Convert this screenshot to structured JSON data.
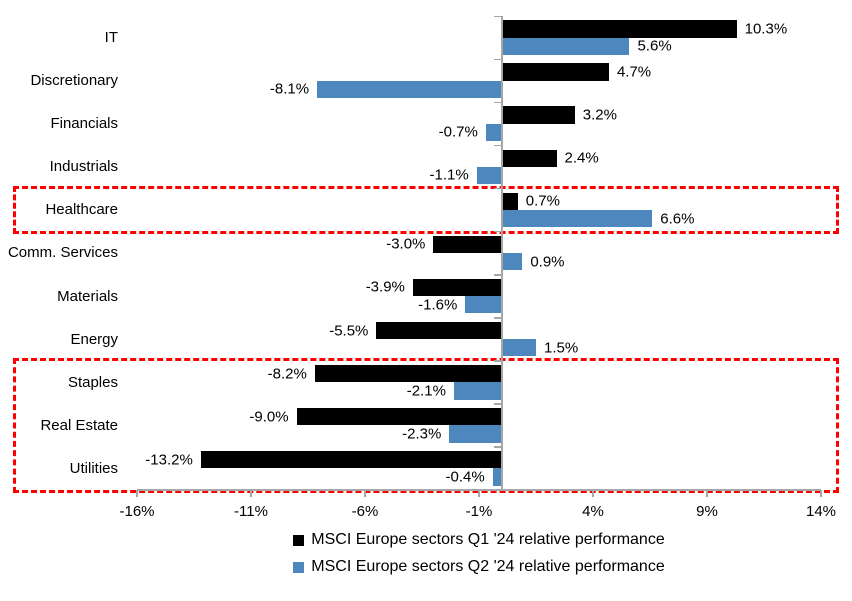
{
  "chart_data": {
    "type": "bar",
    "orientation": "horizontal",
    "categories": [
      "IT",
      "Discretionary",
      "Financials",
      "Industrials",
      "Healthcare",
      "Comm. Services",
      "Materials",
      "Energy",
      "Staples",
      "Real Estate",
      "Utilities"
    ],
    "series": [
      {
        "name": "MSCI Europe sectors Q1 '24 relative performance",
        "color": "#000000",
        "values": [
          10.3,
          4.7,
          3.2,
          2.4,
          0.7,
          -3.0,
          -3.9,
          -5.5,
          -8.2,
          -9.0,
          -13.2
        ],
        "labels": [
          "10.3%",
          "4.7%",
          "3.2%",
          "2.4%",
          "0.7%",
          "-3.0%",
          "-3.9%",
          "-5.5%",
          "-8.2%",
          "-9.0%",
          "-13.2%"
        ]
      },
      {
        "name": "MSCI Europe sectors Q2 '24 relative performance",
        "color": "#4e86be",
        "values": [
          5.6,
          -8.1,
          -0.7,
          -1.1,
          6.6,
          0.9,
          -1.6,
          1.5,
          -2.1,
          -2.3,
          -0.4
        ],
        "labels": [
          "5.6%",
          "-8.1%",
          "-0.7%",
          "-1.1%",
          "6.6%",
          "0.9%",
          "-1.6%",
          "1.5%",
          "-2.1%",
          "-2.3%",
          "-0.4%"
        ]
      }
    ],
    "xlim": [
      -16,
      14
    ],
    "x_tick_values": [
      -16,
      -11,
      -6,
      -1,
      4,
      9,
      14
    ],
    "x_tick_labels": [
      "-16%",
      "-11%",
      "-6%",
      "-1%",
      "4%",
      "9%",
      "14%"
    ],
    "grid": false,
    "legend_position": "bottom",
    "axis_color": "#a6a6a6",
    "highlight_color": "#fe0000",
    "highlights": [
      {
        "name": "healthcare-highlight",
        "start_row": 4,
        "end_row": 4
      },
      {
        "name": "defensives-highlight",
        "start_row": 8,
        "end_row": 10
      }
    ]
  }
}
